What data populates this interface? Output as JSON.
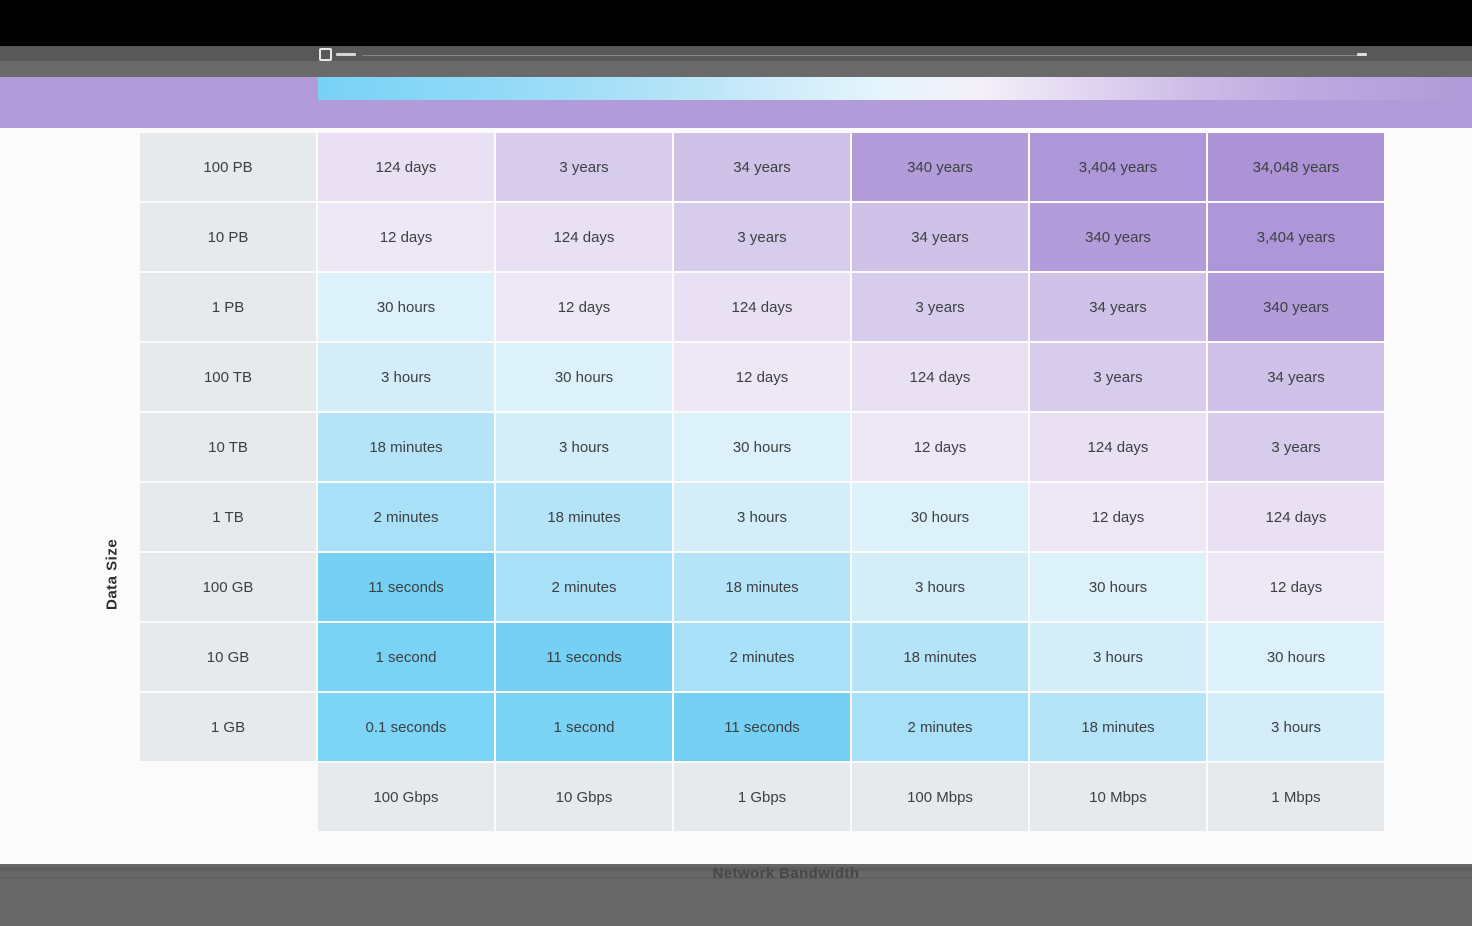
{
  "chrome": {
    "top_bar_color": "#000000",
    "toolbar_colors": [
      "#585858",
      "#6a6a6a"
    ],
    "accent_band_color": "#b19cd9",
    "footer_color": "#676767",
    "icons": [
      "toolbar-status-glyphs-icon",
      "toolbar-corner-glyph-icon",
      "toolbar-rule-line"
    ]
  },
  "chart_data": {
    "type": "heatmap",
    "title": "",
    "ylabel": "Data Size",
    "xlabel": "Network Bandwidth",
    "legend_position": "none",
    "grid": "off",
    "rows": [
      "100 PB",
      "10 PB",
      "1 PB",
      "100 TB",
      "10 TB",
      "1 TB",
      "100 GB",
      "10 GB",
      "1 GB"
    ],
    "columns": [
      "100 Gbps",
      "10 Gbps",
      "1 Gbps",
      "100 Mbps",
      "10 Mbps",
      "1 Mbps"
    ],
    "values": [
      [
        "124 days",
        "3 years",
        "34 years",
        "340 years",
        "3,404 years",
        "34,048 years"
      ],
      [
        "12 days",
        "124 days",
        "3 years",
        "34 years",
        "340 years",
        "3,404 years"
      ],
      [
        "30 hours",
        "12 days",
        "124 days",
        "3 years",
        "34 years",
        "340 years"
      ],
      [
        "3 hours",
        "30 hours",
        "12 days",
        "124 days",
        "3 years",
        "34 years"
      ],
      [
        "18 minutes",
        "3 hours",
        "30 hours",
        "12 days",
        "124 days",
        "3 years"
      ],
      [
        "2 minutes",
        "18 minutes",
        "3 hours",
        "30 hours",
        "12 days",
        "124 days"
      ],
      [
        "11 seconds",
        "2 minutes",
        "18 minutes",
        "3 hours",
        "30 hours",
        "12 days"
      ],
      [
        "1 second",
        "11 seconds",
        "2 minutes",
        "18 minutes",
        "3 hours",
        "30 hours"
      ],
      [
        "0.1 seconds",
        "1 second",
        "11 seconds",
        "2 minutes",
        "18 minutes",
        "3 hours"
      ]
    ],
    "value_colors": {
      "0.1 seconds": "#7cd4f7",
      "1 second": "#7ad2f5",
      "11 seconds": "#76d0f3",
      "2 minutes": "#a8e0f7",
      "18 minutes": "#b5e4f8",
      "3 hours": "#d3edf9",
      "30 hours": "#dcf1fa",
      "12 days": "#eee7f6",
      "124 days": "#e9e1f3",
      "3 years": "#d7ccec",
      "34 years": "#cfc1e8",
      "340 years": "#b29dda",
      "3,404 years": "#ae97d8",
      "34,048 years": "#ab93d6"
    },
    "label_bg": "#e6eaed",
    "text_color": "#3c4043"
  }
}
